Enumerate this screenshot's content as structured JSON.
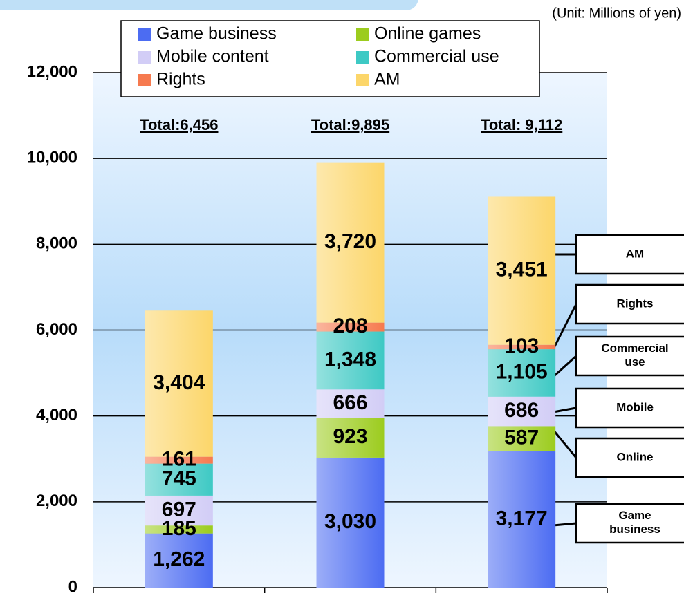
{
  "chart_data": {
    "type": "bar",
    "stacked": true,
    "subtitle": "(Unit: Millions of yen)",
    "categories": [
      null,
      null,
      null
    ],
    "series": [
      {
        "name": "Game business",
        "color": "#4c6cf2",
        "values": [
          1262,
          3030,
          3177
        ],
        "value_labels": [
          "1,262",
          "3,030",
          "3,177"
        ]
      },
      {
        "name": "Online games",
        "color": "#9ccc1e",
        "values": [
          185,
          923,
          587
        ],
        "value_labels": [
          "185",
          "923",
          "587"
        ]
      },
      {
        "name": "Mobile content",
        "color": "#d2cdf6",
        "values": [
          697,
          666,
          686
        ],
        "value_labels": [
          "697",
          "666",
          "686"
        ]
      },
      {
        "name": "Commercial use",
        "color": "#3ec9c4",
        "values": [
          745,
          1348,
          1105
        ],
        "value_labels": [
          "745",
          "1,348",
          "1,105"
        ]
      },
      {
        "name": "Rights",
        "color": "#f67a4f",
        "values": [
          161,
          208,
          103
        ],
        "value_labels": [
          "161",
          "208",
          "103"
        ]
      },
      {
        "name": "AM",
        "color": "#fcd66a",
        "values": [
          3404,
          3720,
          3451
        ],
        "value_labels": [
          "3,404",
          "3,720",
          "3,451"
        ]
      }
    ],
    "totals": [
      "Total:6,456",
      "Total:9,895",
      "Total: 9,112"
    ],
    "callouts": [
      "AM",
      "Rights",
      "Commercial use",
      "Mobile",
      "Online",
      "Game business"
    ],
    "ylim": [
      0,
      12000
    ],
    "yticks": [
      0,
      {
        "value": 2000,
        "label": "2,000"
      },
      {
        "value": 4000,
        "label": "4,000"
      },
      {
        "value": 6000,
        "label": "6,000"
      },
      {
        "value": 8000,
        "label": "8,000"
      },
      {
        "value": 10000,
        "label": "10,000"
      },
      {
        "value": 12000,
        "label": "12,000"
      }
    ],
    "grid": true,
    "legend": "top"
  }
}
